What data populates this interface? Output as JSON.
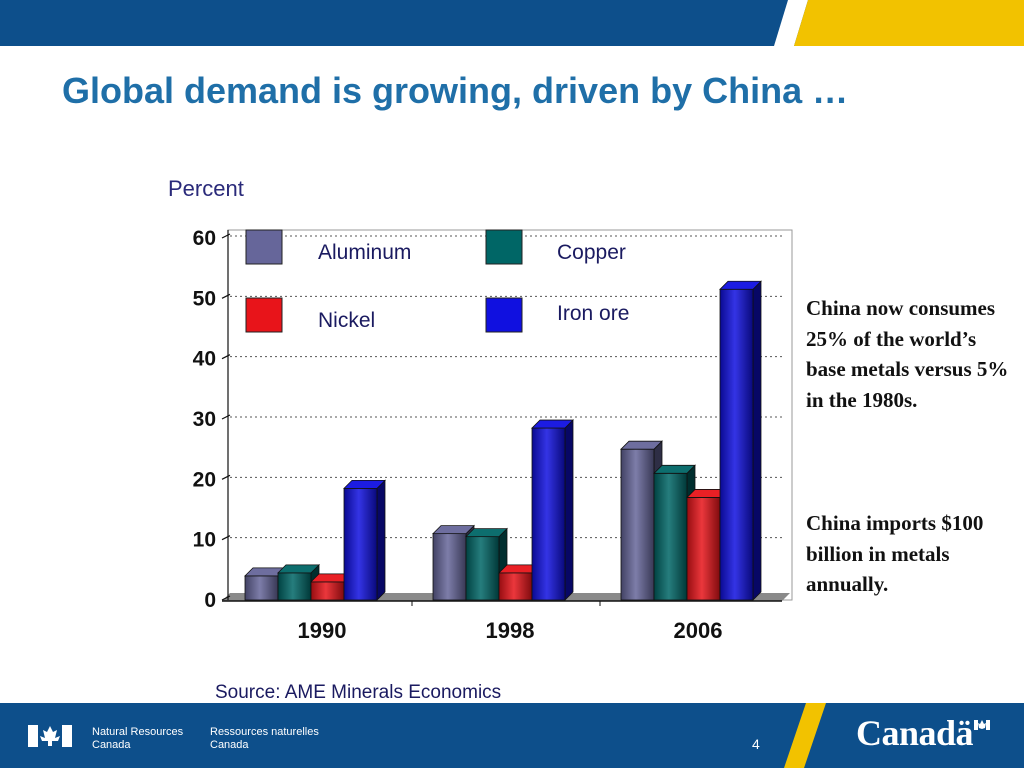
{
  "slide": {
    "title": "Global demand is growing, driven by China …",
    "notes": [
      "China now consumes 25% of the world’s base metals versus 5% in the 1980s.",
      "China imports $100 billion in metals annually."
    ],
    "source": "Source: AME Minerals Economics",
    "page_number": "4"
  },
  "footer": {
    "department_en": [
      "Natural Resources",
      "Canada"
    ],
    "department_fr": [
      "Ressources naturelles",
      "Canada"
    ],
    "wordmark": "Canadä",
    "colors": {
      "band": "#0d4f8b",
      "accent": "#f2c200"
    }
  },
  "chart_data": {
    "type": "bar",
    "title": "",
    "ylabel": "Percent",
    "xlabel": "",
    "categories": [
      "1990",
      "1998",
      "2006"
    ],
    "ylim": [
      0,
      60
    ],
    "yticks": [
      0,
      10,
      20,
      30,
      40,
      50,
      60
    ],
    "grid": true,
    "legend_placement": "top-left, inside plot",
    "series": [
      {
        "name": "Aluminum",
        "color": "#66669a",
        "values": [
          4,
          11,
          25
        ]
      },
      {
        "name": "Copper",
        "color": "#006666",
        "values": [
          4.5,
          10.5,
          21
        ]
      },
      {
        "name": "Nickel",
        "color": "#e8141a",
        "values": [
          3,
          4.5,
          17
        ]
      },
      {
        "name": "Iron ore",
        "color": "#1010e0",
        "values": [
          18.5,
          28.5,
          51.5
        ]
      }
    ]
  }
}
